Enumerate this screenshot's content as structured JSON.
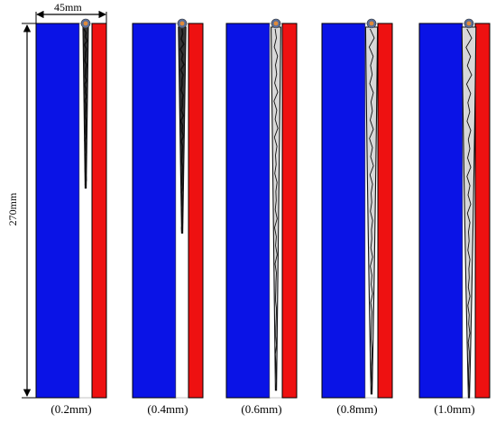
{
  "dimensions": {
    "width_label": "45mm",
    "height_label": "270mm"
  },
  "colors": {
    "left_plate": "#0a13e6",
    "right_plate": "#ee1111",
    "gap": "#ffffff",
    "crack": "#111111",
    "outline": "#000000",
    "nozzle_outer": "#5b6f99",
    "nozzle_inner": "#e08a3a"
  },
  "panels": [
    {
      "caption": "(0.2mm)",
      "crack_depth_fraction": 0.44
    },
    {
      "caption": "(0.4mm)",
      "crack_depth_fraction": 0.56
    },
    {
      "caption": "(0.6mm)",
      "crack_depth_fraction": 0.98
    },
    {
      "caption": "(0.8mm)",
      "crack_depth_fraction": 0.99
    },
    {
      "caption": "(1.0mm)",
      "crack_depth_fraction": 1.0
    }
  ]
}
